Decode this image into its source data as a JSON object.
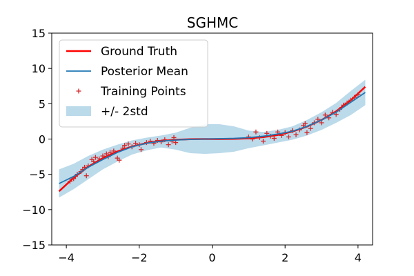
{
  "chart_data": {
    "type": "line",
    "title": "SGHMC",
    "xlabel": "",
    "ylabel": "",
    "xlim": [
      -4.4,
      4.4
    ],
    "ylim": [
      -15,
      15
    ],
    "xticks": [
      -4,
      -2,
      0,
      2,
      4
    ],
    "yticks": [
      -15,
      -10,
      -5,
      0,
      5,
      10,
      15
    ],
    "xtick_labels": [
      "−4",
      "−2",
      "0",
      "2",
      "4"
    ],
    "ytick_labels": [
      "−15",
      "−10",
      "−5",
      "0",
      "5",
      "10",
      "15"
    ],
    "grid": false,
    "legend_placement": "upper-left",
    "colors": {
      "ground_truth": "#ff0000",
      "posterior_mean": "#1f77b4",
      "training_points": "#d62728",
      "band": "#9ecae1"
    },
    "legend": [
      {
        "label": "Ground Truth",
        "kind": "line",
        "color": "#ff0000"
      },
      {
        "label": "Posterior Mean",
        "kind": "line",
        "color": "#1f77b4"
      },
      {
        "label": "Training Points",
        "kind": "marker",
        "color": "#d62728"
      },
      {
        "label": "+/- 2std",
        "kind": "band",
        "color": "#9ecae1"
      }
    ],
    "series": [
      {
        "name": "Ground Truth",
        "x": [
          -4.2,
          -3.8,
          -3.4,
          -3.0,
          -2.6,
          -2.2,
          -1.8,
          -1.4,
          -1.0,
          -0.6,
          -0.2,
          0.2,
          0.6,
          1.0,
          1.4,
          1.8,
          2.2,
          2.6,
          3.0,
          3.4,
          3.8,
          4.2
        ],
        "y": [
          -7.4,
          -5.49,
          -3.93,
          -2.7,
          -1.76,
          -1.06,
          -0.58,
          -0.27,
          -0.1,
          -0.02,
          0.0,
          0.0,
          0.02,
          0.1,
          0.27,
          0.58,
          1.06,
          1.76,
          2.7,
          3.93,
          5.49,
          7.4
        ]
      },
      {
        "name": "Posterior Mean",
        "x": [
          -4.2,
          -3.8,
          -3.4,
          -3.0,
          -2.6,
          -2.2,
          -1.8,
          -1.4,
          -1.0,
          -0.6,
          -0.2,
          0.2,
          0.6,
          1.0,
          1.4,
          1.8,
          2.2,
          2.6,
          3.0,
          3.4,
          3.8,
          4.2
        ],
        "y": [
          -6.3,
          -5.3,
          -4.0,
          -2.9,
          -1.9,
          -1.1,
          -0.6,
          -0.3,
          -0.15,
          -0.05,
          0.0,
          0.05,
          0.1,
          0.2,
          0.4,
          0.7,
          1.1,
          1.8,
          2.7,
          3.8,
          5.2,
          6.6
        ]
      },
      {
        "name": "Training Points",
        "x": [
          -3.9,
          -3.8,
          -3.75,
          -3.7,
          -3.6,
          -3.55,
          -3.5,
          -3.45,
          -3.4,
          -3.3,
          -3.25,
          -3.2,
          -3.1,
          -3.0,
          -2.9,
          -2.85,
          -2.8,
          -2.7,
          -2.6,
          -2.55,
          -2.45,
          -2.4,
          -2.3,
          -2.2,
          -2.1,
          -2.0,
          -1.95,
          -1.8,
          -1.7,
          -1.6,
          -1.5,
          -1.4,
          -1.3,
          -1.2,
          -1.1,
          -1.05,
          -1.0,
          1.0,
          1.1,
          1.2,
          1.3,
          1.4,
          1.5,
          1.6,
          1.7,
          1.8,
          1.9,
          2.0,
          2.1,
          2.2,
          2.3,
          2.4,
          2.5,
          2.55,
          2.6,
          2.7,
          2.8,
          2.9,
          3.0,
          3.1,
          3.2,
          3.3,
          3.4,
          3.5,
          3.6,
          3.7,
          3.8,
          3.9,
          4.0
        ],
        "y": [
          -6.0,
          -5.6,
          -5.3,
          -5.0,
          -4.6,
          -4.3,
          -4.0,
          -5.2,
          -3.8,
          -2.9,
          -3.2,
          -2.6,
          -2.8,
          -2.4,
          -2.1,
          -2.5,
          -1.9,
          -1.7,
          -2.7,
          -3.0,
          -1.3,
          -0.9,
          -0.7,
          -1.1,
          -0.6,
          -0.8,
          -1.5,
          -0.5,
          -0.3,
          -0.6,
          -0.2,
          -0.4,
          -0.1,
          -0.8,
          -0.3,
          0.2,
          -0.5,
          0.3,
          0.0,
          1.0,
          0.2,
          -0.3,
          0.8,
          0.4,
          0.1,
          1.0,
          0.5,
          0.9,
          0.3,
          1.2,
          0.6,
          1.3,
          1.9,
          2.2,
          0.9,
          1.5,
          2.3,
          2.8,
          2.3,
          3.4,
          3.0,
          3.8,
          3.5,
          4.2,
          4.8,
          5.1,
          5.5,
          5.9,
          6.3
        ]
      }
    ],
    "band": {
      "name": "+/- 2std",
      "x": [
        -4.2,
        -3.8,
        -3.4,
        -3.0,
        -2.6,
        -2.2,
        -1.8,
        -1.4,
        -1.0,
        -0.6,
        -0.2,
        0.2,
        0.6,
        1.0,
        1.4,
        1.8,
        2.2,
        2.6,
        3.0,
        3.4,
        3.8,
        4.2
      ],
      "lower": [
        -8.3,
        -7.1,
        -5.7,
        -4.3,
        -3.2,
        -2.2,
        -1.6,
        -1.2,
        -1.5,
        -2.0,
        -2.1,
        -2.0,
        -1.8,
        -1.3,
        -0.9,
        -0.5,
        -0.1,
        0.5,
        1.3,
        2.3,
        3.4,
        4.8
      ],
      "upper": [
        -4.3,
        -3.5,
        -2.4,
        -1.5,
        -0.8,
        -0.2,
        0.2,
        0.5,
        0.9,
        1.6,
        2.1,
        2.1,
        1.8,
        1.2,
        1.0,
        1.3,
        1.8,
        2.7,
        3.8,
        5.1,
        6.8,
        8.4
      ]
    }
  }
}
